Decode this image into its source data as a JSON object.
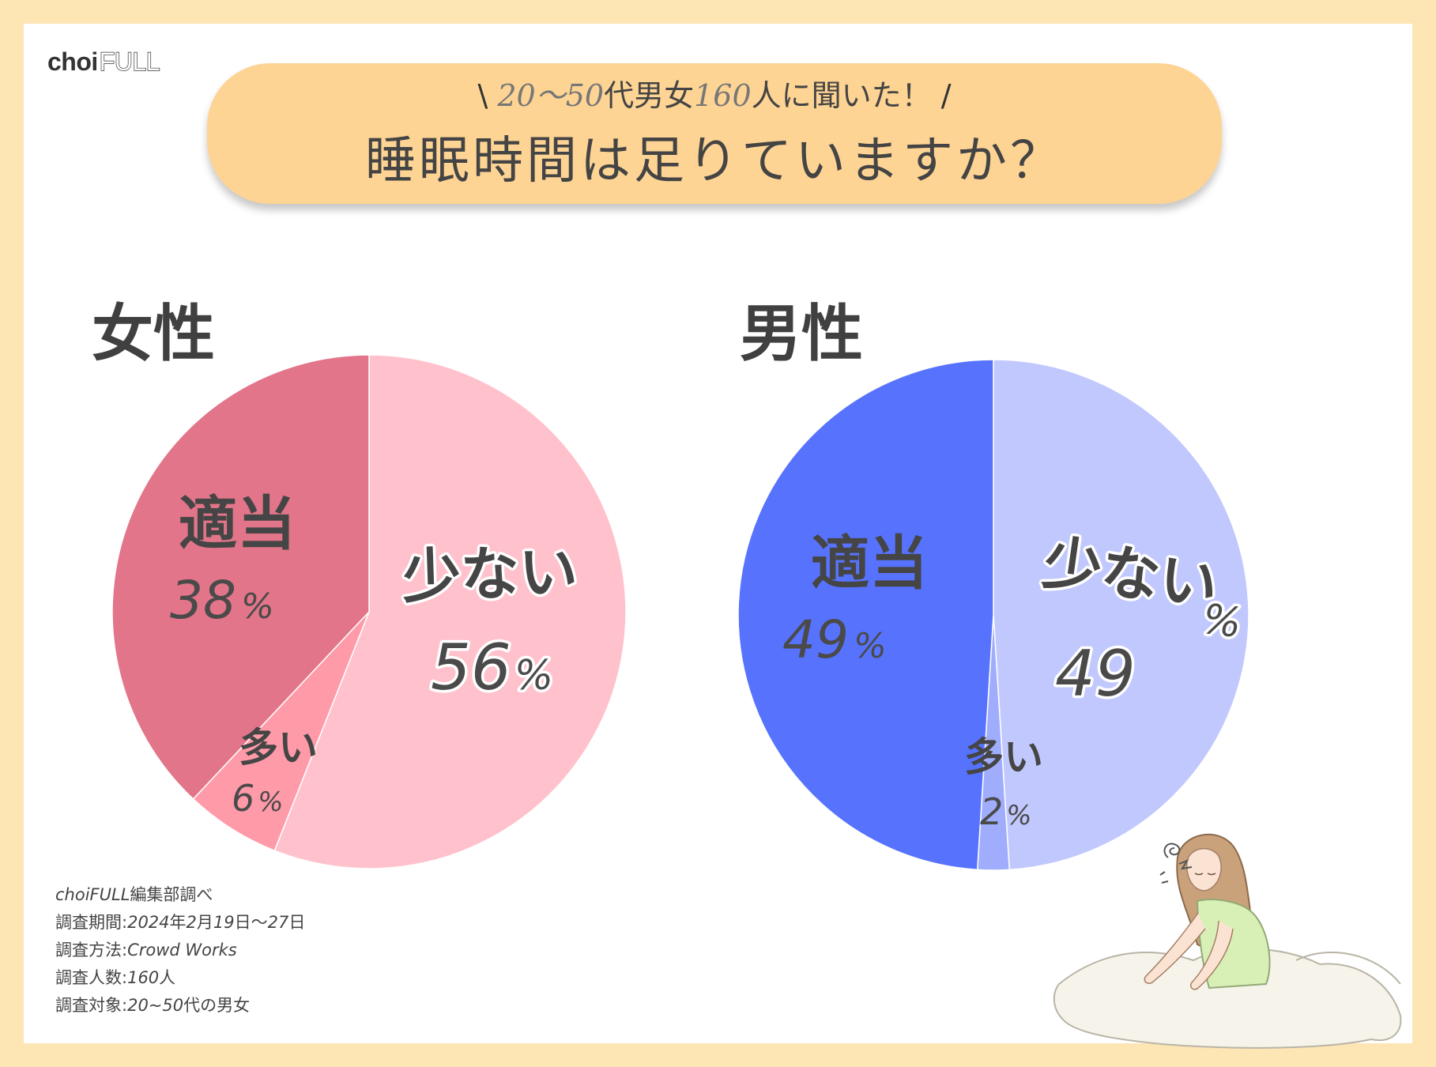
{
  "brand": {
    "logo_choi": "choi",
    "logo_full": "FULL"
  },
  "banner": {
    "slash_left": "\\",
    "sub_number": "20〜50",
    "sub_mid": "代男女",
    "sub_number2": "160",
    "sub_rest": "人に聞いた！",
    "slash_right": "/",
    "title": "睡眠時間は足りていますか？"
  },
  "colors": {
    "female_low": "#ffc2cc",
    "female_ok": "#e27589",
    "female_many": "#ff9aa8",
    "male_low": "#c1c8fd",
    "male_ok": "#5773fe",
    "male_many": "#a0adfd",
    "banner": "#fed494",
    "frame": "#fde5b4"
  },
  "chart_data": [
    {
      "type": "pie",
      "title": "女性",
      "slices": [
        {
          "label": "少ない",
          "value": 56,
          "pct_text": "56",
          "unit": "%"
        },
        {
          "label": "多い",
          "value": 6,
          "pct_text": "6",
          "unit": "%"
        },
        {
          "label": "適当",
          "value": 38,
          "pct_text": "38",
          "unit": "%"
        }
      ]
    },
    {
      "type": "pie",
      "title": "男性",
      "slices": [
        {
          "label": "少ない",
          "value": 49,
          "pct_text": "49",
          "unit": "%"
        },
        {
          "label": "多い",
          "value": 2,
          "pct_text": "2",
          "unit": "%"
        },
        {
          "label": "適当",
          "value": 49,
          "pct_text": "49",
          "unit": "%"
        }
      ]
    }
  ],
  "notes": {
    "line1_a": "choiFULL",
    "line1_b": "編集部調べ",
    "line2_a": "調査期間:",
    "line2_b": "2024",
    "line2_c": "年",
    "line2_d": "2",
    "line2_e": "月",
    "line2_f": "19",
    "line2_g": "日〜",
    "line2_h": "27",
    "line2_i": "日",
    "line3_a": "調査方法:",
    "line3_b": "Crowd Works",
    "line4_a": "調査人数:",
    "line4_b": "160",
    "line4_c": "人",
    "line5_a": "調査対象:",
    "line5_b": "20~50",
    "line5_c": "代の男女"
  }
}
